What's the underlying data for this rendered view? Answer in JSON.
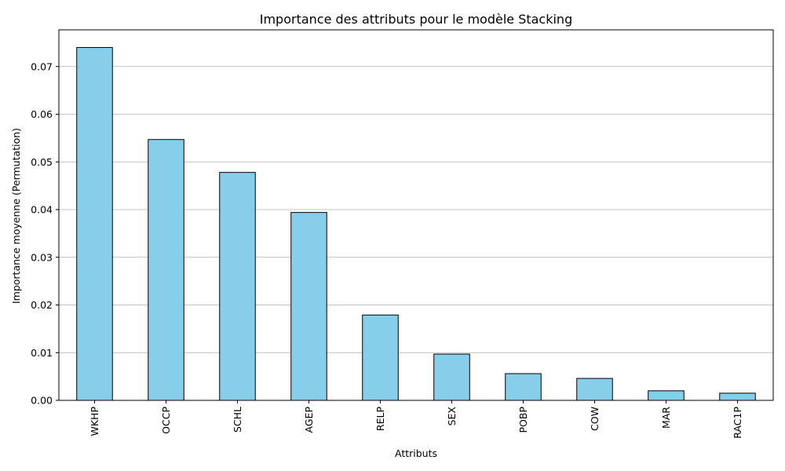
{
  "chart_data": {
    "type": "bar",
    "title": "Importance des attributs pour le modèle Stacking",
    "xlabel": "Attributs",
    "ylabel": "Importance moyenne (Permutation)",
    "categories": [
      "WKHP",
      "OCCP",
      "SCHL",
      "AGEP",
      "RELP",
      "SEX",
      "POBP",
      "COW",
      "MAR",
      "RAC1P"
    ],
    "values": [
      0.074,
      0.0547,
      0.0478,
      0.0394,
      0.0179,
      0.0097,
      0.0056,
      0.0046,
      0.002,
      0.0015
    ],
    "ylim": [
      0,
      0.0777
    ],
    "yticks": [
      0.0,
      0.01,
      0.02,
      0.03,
      0.04,
      0.05,
      0.06,
      0.07
    ],
    "ytick_labels": [
      "0.00",
      "0.01",
      "0.02",
      "0.03",
      "0.04",
      "0.05",
      "0.06",
      "0.07"
    ],
    "grid": "y",
    "bar_color": "#87CEEB",
    "edge_color": "#000000"
  }
}
